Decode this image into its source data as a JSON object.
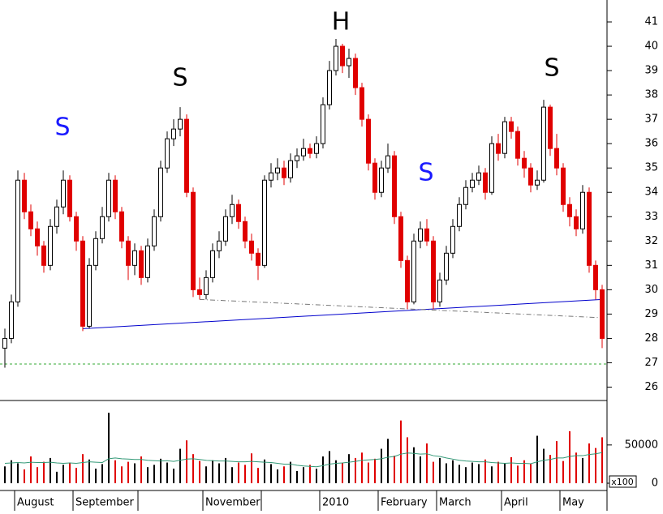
{
  "chart_data": {
    "type": "candlestick",
    "categories": [
      null,
      null,
      "August",
      null,
      null,
      null,
      null,
      null,
      null,
      null,
      null,
      "September",
      null,
      null,
      null,
      null,
      null,
      null,
      null,
      null,
      null,
      null,
      null,
      null,
      null,
      null,
      null,
      null,
      null,
      null,
      null,
      "November",
      null,
      null,
      null,
      null,
      null,
      null,
      null,
      null,
      null,
      null,
      null,
      null,
      null,
      null,
      null,
      null,
      null,
      "2010",
      null,
      null,
      null,
      null,
      null,
      null,
      null,
      null,
      "February",
      null,
      null,
      null,
      null,
      null,
      null,
      null,
      null,
      "March",
      null,
      null,
      null,
      null,
      null,
      null,
      null,
      null,
      null,
      "April",
      null,
      null,
      null,
      null,
      null,
      null,
      null,
      null,
      "May",
      null,
      null,
      null,
      null,
      null,
      null
    ],
    "xticks": [
      2,
      11,
      21,
      31,
      40,
      49,
      58,
      67,
      77,
      86
    ],
    "open": [
      27.6,
      28.0,
      29.5,
      34.5,
      33.2,
      32.5,
      31.8,
      31.0,
      32.6,
      33.4,
      34.5,
      33.0,
      32.0,
      28.5,
      31.0,
      32.1,
      33.0,
      34.5,
      33.2,
      32.0,
      31.0,
      31.6,
      30.5,
      31.8,
      33.0,
      35.0,
      36.2,
      36.6,
      37.0,
      34.0,
      30.0,
      29.8,
      30.5,
      31.6,
      32.0,
      33.0,
      33.5,
      32.8,
      32.0,
      31.5,
      31.0,
      34.5,
      34.8,
      35.0,
      34.6,
      35.3,
      35.5,
      35.8,
      35.6,
      36.0,
      37.6,
      39.0,
      40.0,
      39.2,
      39.5,
      38.3,
      37.0,
      35.2,
      34.0,
      35.0,
      35.5,
      33.0,
      31.2,
      29.5,
      32.0,
      32.5,
      32.0,
      29.5,
      30.4,
      31.5,
      32.6,
      33.5,
      34.2,
      34.5,
      34.8,
      34.0,
      36.0,
      35.6,
      36.9,
      36.5,
      35.4,
      35.0,
      34.3,
      34.5,
      37.5,
      35.8,
      35.0,
      33.5,
      33.0,
      32.5,
      34.0,
      31.0,
      30.0
    ],
    "high": [
      28.4,
      29.8,
      34.9,
      34.8,
      33.5,
      32.8,
      32.0,
      32.9,
      33.7,
      34.9,
      34.7,
      33.2,
      32.2,
      31.3,
      32.4,
      33.4,
      34.8,
      34.7,
      33.4,
      32.2,
      31.9,
      31.8,
      32.1,
      33.3,
      35.3,
      36.5,
      37.0,
      37.5,
      37.2,
      34.2,
      30.5,
      30.8,
      31.9,
      32.4,
      33.3,
      33.9,
      33.7,
      33.0,
      32.3,
      31.7,
      34.7,
      35.2,
      35.4,
      35.3,
      35.6,
      35.8,
      36.2,
      36.0,
      36.3,
      37.9,
      39.4,
      40.3,
      40.1,
      39.9,
      39.7,
      38.5,
      37.2,
      35.4,
      35.3,
      36.0,
      35.7,
      33.2,
      31.4,
      32.3,
      32.8,
      32.9,
      32.2,
      30.7,
      31.8,
      32.9,
      33.8,
      34.5,
      34.8,
      35.1,
      35.0,
      36.3,
      36.4,
      37.1,
      37.1,
      36.7,
      35.7,
      35.2,
      34.9,
      37.8,
      37.6,
      36.4,
      35.2,
      33.8,
      33.3,
      34.3,
      34.2,
      31.2,
      30.2
    ],
    "low": [
      26.8,
      27.8,
      29.3,
      32.9,
      32.2,
      31.4,
      30.7,
      30.8,
      32.3,
      33.1,
      32.8,
      31.6,
      28.3,
      28.4,
      30.8,
      31.9,
      32.8,
      32.9,
      31.7,
      30.4,
      30.6,
      30.2,
      30.3,
      31.6,
      32.8,
      34.8,
      35.9,
      36.3,
      33.8,
      29.7,
      29.6,
      29.6,
      30.3,
      31.3,
      31.8,
      32.7,
      32.5,
      31.7,
      31.2,
      30.4,
      30.9,
      34.2,
      34.5,
      34.3,
      34.4,
      35.0,
      35.3,
      35.4,
      35.4,
      35.8,
      37.4,
      38.8,
      38.9,
      38.7,
      38.0,
      36.7,
      34.9,
      33.7,
      33.8,
      34.8,
      32.7,
      30.9,
      29.2,
      29.4,
      31.7,
      31.8,
      29.2,
      29.3,
      30.2,
      31.3,
      32.4,
      33.3,
      34.0,
      34.3,
      33.7,
      33.9,
      35.3,
      35.4,
      36.2,
      35.1,
      34.6,
      34.0,
      34.1,
      34.4,
      35.5,
      34.7,
      33.2,
      32.6,
      32.2,
      32.3,
      30.7,
      29.6,
      27.6
    ],
    "close": [
      28.0,
      29.5,
      34.5,
      33.2,
      32.5,
      31.8,
      31.0,
      32.6,
      33.4,
      34.5,
      33.0,
      32.0,
      28.5,
      31.0,
      32.1,
      33.0,
      34.5,
      33.2,
      32.0,
      31.0,
      31.6,
      30.5,
      31.8,
      33.0,
      35.0,
      36.2,
      36.6,
      37.0,
      34.0,
      30.0,
      29.8,
      30.5,
      31.6,
      32.0,
      33.0,
      33.5,
      32.8,
      32.0,
      31.5,
      31.0,
      34.5,
      34.8,
      35.0,
      34.6,
      35.3,
      35.5,
      35.8,
      35.6,
      36.0,
      37.6,
      39.0,
      40.0,
      39.2,
      39.5,
      38.3,
      37.0,
      35.2,
      34.0,
      35.0,
      35.5,
      33.0,
      31.2,
      29.5,
      32.0,
      32.5,
      32.0,
      29.5,
      30.4,
      31.5,
      32.6,
      33.5,
      34.2,
      34.5,
      34.8,
      34.0,
      36.0,
      35.6,
      36.9,
      36.5,
      35.4,
      35.0,
      34.3,
      34.5,
      37.5,
      35.8,
      35.0,
      33.5,
      33.0,
      32.5,
      34.0,
      31.0,
      30.0,
      28.0
    ],
    "volume": [
      22000,
      30000,
      26000,
      18000,
      35000,
      21000,
      28000,
      33000,
      15000,
      24000,
      27000,
      20000,
      38000,
      31000,
      19000,
      25000,
      92000,
      30000,
      22000,
      28000,
      26000,
      35000,
      21000,
      24000,
      32000,
      27000,
      19000,
      45000,
      56000,
      38000,
      29000,
      22000,
      30000,
      26000,
      33000,
      21000,
      27000,
      24000,
      39000,
      20000,
      31000,
      25000,
      18000,
      22000,
      28000,
      16000,
      21000,
      24000,
      19000,
      35000,
      42000,
      30000,
      26000,
      38000,
      33000,
      40000,
      27000,
      32000,
      45000,
      58000,
      36000,
      82000,
      60000,
      47000,
      35000,
      52000,
      28000,
      33000,
      26000,
      30000,
      24000,
      21000,
      27000,
      25000,
      31000,
      22000,
      28000,
      26000,
      34000,
      23000,
      30000,
      25000,
      62000,
      45000,
      37000,
      55000,
      29000,
      68000,
      40000,
      33000,
      52000,
      46000,
      60000
    ],
    "volume_ma": [
      26000,
      26500,
      27000,
      26500,
      27500,
      27000,
      27000,
      27500,
      26500,
      26000,
      26500,
      26000,
      27000,
      28000,
      27500,
      27000,
      32000,
      33000,
      32000,
      31500,
      31000,
      31000,
      30000,
      29500,
      29000,
      29500,
      28500,
      30000,
      31500,
      32000,
      31000,
      30000,
      29500,
      29000,
      29000,
      28500,
      28000,
      28000,
      28500,
      28000,
      27500,
      27000,
      26000,
      25000,
      25000,
      23500,
      22500,
      22000,
      21500,
      23000,
      25000,
      26000,
      26500,
      27500,
      28500,
      30000,
      30500,
      31000,
      32000,
      34000,
      35000,
      38000,
      39500,
      39000,
      38000,
      38500,
      36000,
      35000,
      33000,
      31500,
      30000,
      29000,
      28500,
      28000,
      28000,
      27000,
      26500,
      26000,
      26500,
      26000,
      26000,
      25500,
      28000,
      30000,
      31000,
      33000,
      33000,
      35000,
      36000,
      36000,
      37500,
      38500,
      40000
    ],
    "up_color": "#000000",
    "down_color": "#e00000",
    "volume_ma_color": "#339977",
    "ylim": [
      25.45,
      41.9
    ],
    "yticks": [
      26,
      27,
      28,
      29,
      30,
      31,
      32,
      33,
      34,
      35,
      36,
      37,
      38,
      39,
      40,
      41
    ],
    "y2lim": [
      -9500,
      106000
    ],
    "y2ticks": [
      0,
      50000
    ],
    "volume_unit": "x100",
    "reference_line": {
      "value": 26.95,
      "color": "#33aa33"
    },
    "trendlines": [
      {
        "start": [
          12,
          28.4
        ],
        "end": [
          92,
          29.6
        ],
        "color": "#0000cc",
        "dash": "solid"
      },
      {
        "start": [
          30,
          29.6
        ],
        "end": [
          92,
          28.85
        ],
        "color": "#777777",
        "dash": "dashdot"
      }
    ],
    "annotations": [
      {
        "text": "S",
        "color": "#1a1aff"
      },
      {
        "text": "S",
        "color": "#000000"
      },
      {
        "text": "H",
        "color": "#000000"
      },
      {
        "text": "S",
        "color": "#1a1aff"
      },
      {
        "text": "S",
        "color": "#000000"
      }
    ]
  }
}
